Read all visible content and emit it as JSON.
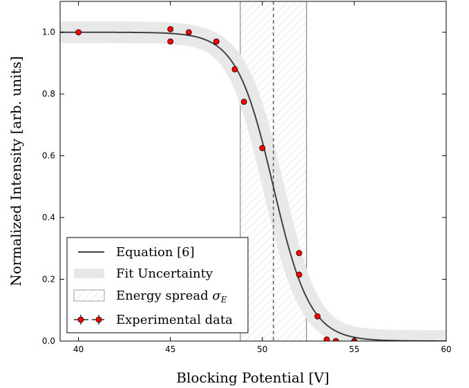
{
  "chart_data": {
    "type": "line",
    "xlabel": "Blocking Potential [V]",
    "ylabel": "Normalized Intensity [arb. units]",
    "xlim": [
      39,
      60
    ],
    "ylim": [
      0,
      1.1
    ],
    "xticks": [
      "40",
      "45",
      "50",
      "55",
      "60"
    ],
    "yticks": [
      "0.0",
      "0.2",
      "0.4",
      "0.6",
      "0.8",
      "1.0"
    ],
    "legend_position": "lower-left",
    "legend": {
      "fit": "Equation [6]",
      "band": "Fit Uncertainty",
      "span": "Energy spread σ_E",
      "data": "Experimental data"
    },
    "fit_curve": {
      "name": "Equation [6]",
      "center": 50.6,
      "width": 1.0,
      "color": "#404040"
    },
    "fit_band": {
      "name": "Fit Uncertainty",
      "halfwidth": 0.035,
      "color": "#e8e8e8"
    },
    "energy_spread": {
      "name": "Energy spread",
      "x_min": 48.8,
      "x_max": 52.4,
      "center": 50.6
    },
    "series": [
      {
        "name": "Experimental data",
        "marker_color": "#ff0000",
        "x": [
          40,
          45,
          45,
          46,
          47.5,
          48.5,
          49,
          50,
          52,
          52,
          53,
          53.5,
          54,
          55
        ],
        "y": [
          1.0,
          1.01,
          0.97,
          1.0,
          0.97,
          0.88,
          0.775,
          0.625,
          0.285,
          0.215,
          0.08,
          0.005,
          0.0,
          0.0
        ]
      }
    ]
  }
}
